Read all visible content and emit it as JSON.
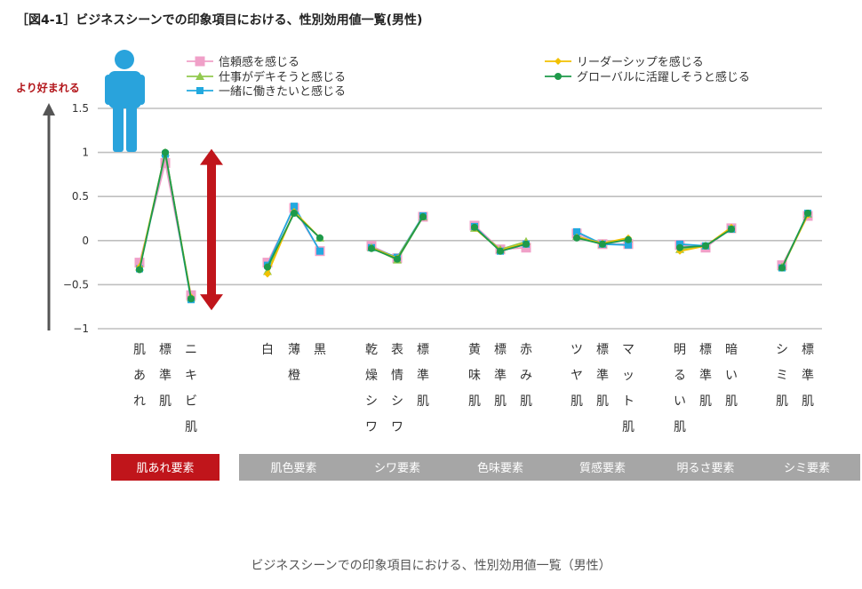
{
  "figure_title": "［図4-1］ビジネスシーンでの印象項目における、性別効用値一覧(男性)",
  "y_arrow_label": "より好まれる",
  "caption": "ビジネスシーンでの印象項目における、性別効用値一覧（男性）",
  "colors": {
    "grid": "#bfbfbf",
    "axis_arrow": "#555555",
    "person": "#29a3dc",
    "range_arrow": "#c0151b",
    "group_active": "#c0151b",
    "group_inactive": "#a6a6a6"
  },
  "icons": [
    "person-icon",
    "double-arrow"
  ],
  "chart_data": {
    "type": "line",
    "ylim": [
      -1,
      1.5
    ],
    "yticks": [
      "1.5",
      "1",
      "0.5",
      "0",
      "−0.5",
      "−1"
    ],
    "ytick_values": [
      1.5,
      1,
      0.5,
      0,
      -0.5,
      -1
    ],
    "grid": true,
    "legend_position": "top",
    "categories": [
      "肌あれ",
      "標準肌",
      "ニキビ肌",
      "白",
      "薄橙",
      "黒",
      "乾燥シワ",
      "表情シワ",
      "標準肌",
      "黄味肌",
      "標準肌",
      "赤み肌",
      "ツヤ肌",
      "標準肌",
      "マット肌",
      "明るい肌",
      "標準肌",
      "暗い肌",
      "シミ肌",
      "標準肌"
    ],
    "groups": [
      {
        "label": "肌あれ要素",
        "members": 3,
        "active": true
      },
      {
        "label": "肌色要素",
        "members": 3,
        "active": false
      },
      {
        "label": "シワ要素",
        "members": 3,
        "active": false
      },
      {
        "label": "色味要素",
        "members": 3,
        "active": false
      },
      {
        "label": "質感要素",
        "members": 3,
        "active": false
      },
      {
        "label": "明るさ要素",
        "members": 3,
        "active": false
      },
      {
        "label": "シミ要素",
        "members": 2,
        "active": false
      }
    ],
    "series": [
      {
        "name": "信頼感を感じる",
        "color": "#f0a0c8",
        "marker": "square",
        "values": [
          -0.25,
          0.88,
          -0.62,
          -0.25,
          0.37,
          -0.12,
          -0.06,
          -0.2,
          0.27,
          0.17,
          -0.1,
          -0.08,
          0.08,
          -0.04,
          -0.04,
          -0.05,
          -0.08,
          0.14,
          -0.28,
          0.28
        ]
      },
      {
        "name": "仕事がデキそうと感じる",
        "color": "#92c94f",
        "marker": "triangle",
        "values": [
          -0.3,
          1.0,
          -0.65,
          -0.35,
          0.32,
          0.03,
          -0.08,
          -0.22,
          0.27,
          0.14,
          -0.1,
          -0.01,
          0.05,
          -0.04,
          0.02,
          -0.1,
          -0.06,
          0.13,
          -0.3,
          0.3
        ]
      },
      {
        "name": "一緒に働きたいと感じる",
        "color": "#22a9df",
        "marker": "square",
        "values": [
          -0.32,
          0.98,
          -0.67,
          -0.28,
          0.39,
          -0.12,
          -0.08,
          -0.19,
          0.28,
          0.16,
          -0.12,
          -0.04,
          0.1,
          -0.04,
          -0.05,
          -0.04,
          -0.06,
          0.13,
          -0.31,
          0.31
        ]
      },
      {
        "name": "リーダーシップを感じる",
        "color": "#f2c100",
        "marker": "diamond",
        "values": [
          -0.3,
          0.99,
          -0.64,
          -0.38,
          0.33,
          0.03,
          -0.08,
          -0.2,
          0.27,
          0.14,
          -0.11,
          -0.03,
          0.04,
          -0.03,
          0.03,
          -0.12,
          -0.06,
          0.15,
          -0.31,
          0.29
        ]
      },
      {
        "name": "グローバルに活躍しそうと感じる",
        "color": "#1e9a4a",
        "marker": "circle",
        "values": [
          -0.33,
          1.0,
          -0.66,
          -0.3,
          0.31,
          0.03,
          -0.09,
          -0.21,
          0.27,
          0.15,
          -0.12,
          -0.04,
          0.03,
          -0.04,
          0.01,
          -0.08,
          -0.06,
          0.13,
          -0.31,
          0.31
        ]
      }
    ]
  }
}
